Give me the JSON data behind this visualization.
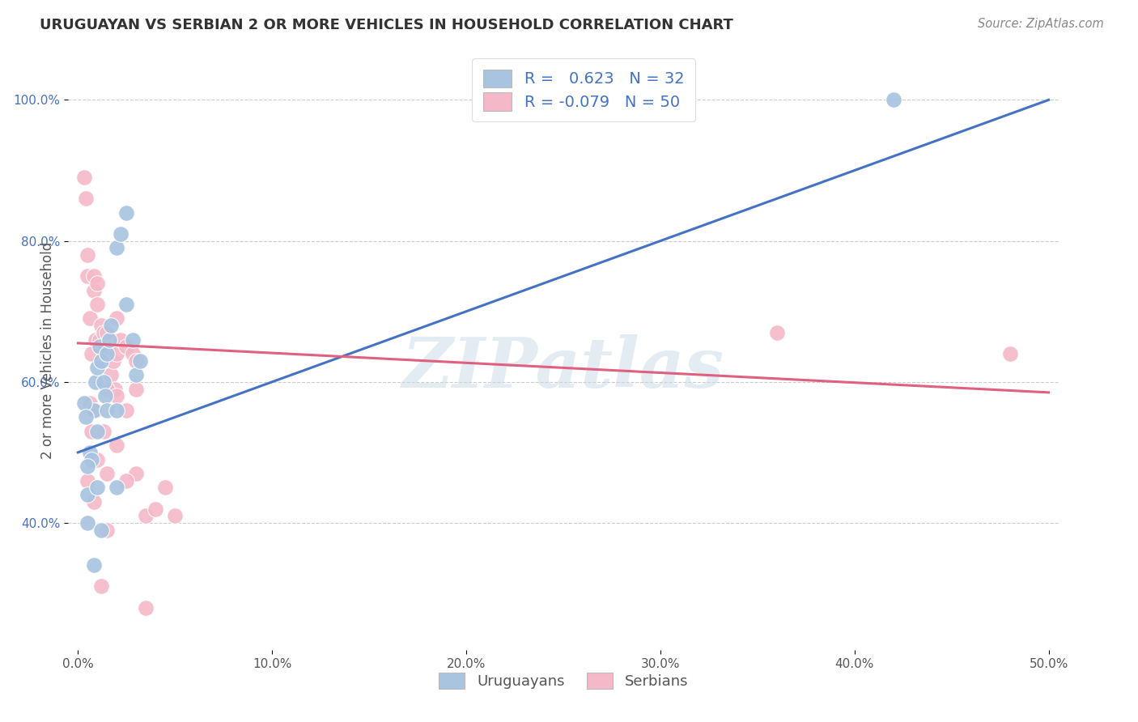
{
  "title": "URUGUAYAN VS SERBIAN 2 OR MORE VEHICLES IN HOUSEHOLD CORRELATION CHART",
  "source": "Source: ZipAtlas.com",
  "ylabel": "2 or more Vehicles in Household",
  "xlim": [
    -0.005,
    0.505
  ],
  "ylim": [
    22.0,
    107.0
  ],
  "yticks": [
    40.0,
    60.0,
    80.0,
    100.0
  ],
  "xticks": [
    0.0,
    0.1,
    0.2,
    0.3,
    0.4,
    0.5
  ],
  "uruguayan_R": 0.623,
  "uruguayan_N": 32,
  "serbian_R": -0.079,
  "serbian_N": 50,
  "uruguayan_color": "#a8c4e0",
  "serbian_color": "#f4b8c8",
  "uruguayan_line_color": "#4472c4",
  "serbian_line_color": "#e06080",
  "uruguayan_points": [
    [
      0.005,
      44.0
    ],
    [
      0.006,
      50.0
    ],
    [
      0.008,
      56.0
    ],
    [
      0.009,
      60.0
    ],
    [
      0.01,
      62.0
    ],
    [
      0.011,
      65.0
    ],
    [
      0.012,
      63.0
    ],
    [
      0.013,
      60.0
    ],
    [
      0.014,
      58.0
    ],
    [
      0.015,
      64.0
    ],
    [
      0.016,
      66.0
    ],
    [
      0.017,
      68.0
    ],
    [
      0.02,
      79.0
    ],
    [
      0.022,
      81.0
    ],
    [
      0.025,
      71.0
    ],
    [
      0.028,
      66.0
    ],
    [
      0.03,
      61.0
    ],
    [
      0.032,
      63.0
    ],
    [
      0.003,
      57.0
    ],
    [
      0.004,
      55.0
    ],
    [
      0.007,
      49.0
    ],
    [
      0.01,
      53.0
    ],
    [
      0.005,
      40.0
    ],
    [
      0.015,
      56.0
    ],
    [
      0.01,
      45.0
    ],
    [
      0.02,
      56.0
    ],
    [
      0.008,
      34.0
    ],
    [
      0.012,
      39.0
    ],
    [
      0.025,
      84.0
    ],
    [
      0.02,
      45.0
    ],
    [
      0.005,
      48.0
    ],
    [
      0.42,
      100.0
    ]
  ],
  "serbian_points": [
    [
      0.003,
      89.0
    ],
    [
      0.005,
      78.0
    ],
    [
      0.006,
      69.0
    ],
    [
      0.007,
      64.0
    ],
    [
      0.008,
      73.0
    ],
    [
      0.009,
      66.0
    ],
    [
      0.01,
      71.0
    ],
    [
      0.011,
      66.0
    ],
    [
      0.012,
      68.0
    ],
    [
      0.013,
      67.0
    ],
    [
      0.014,
      65.0
    ],
    [
      0.015,
      67.0
    ],
    [
      0.016,
      64.0
    ],
    [
      0.017,
      61.0
    ],
    [
      0.018,
      63.0
    ],
    [
      0.019,
      59.0
    ],
    [
      0.02,
      64.0
    ],
    [
      0.022,
      66.0
    ],
    [
      0.025,
      65.0
    ],
    [
      0.028,
      64.0
    ],
    [
      0.03,
      59.0
    ],
    [
      0.004,
      86.0
    ],
    [
      0.005,
      75.0
    ],
    [
      0.008,
      75.0
    ],
    [
      0.01,
      74.0
    ],
    [
      0.02,
      69.0
    ],
    [
      0.025,
      56.0
    ],
    [
      0.03,
      63.0
    ],
    [
      0.006,
      57.0
    ],
    [
      0.009,
      56.0
    ],
    [
      0.015,
      59.0
    ],
    [
      0.02,
      58.0
    ],
    [
      0.007,
      53.0
    ],
    [
      0.013,
      53.0
    ],
    [
      0.02,
      51.0
    ],
    [
      0.01,
      49.0
    ],
    [
      0.005,
      46.0
    ],
    [
      0.008,
      43.0
    ],
    [
      0.03,
      47.0
    ],
    [
      0.015,
      47.0
    ],
    [
      0.025,
      46.0
    ],
    [
      0.035,
      41.0
    ],
    [
      0.04,
      42.0
    ],
    [
      0.045,
      45.0
    ],
    [
      0.05,
      41.0
    ],
    [
      0.015,
      39.0
    ],
    [
      0.035,
      28.0
    ],
    [
      0.012,
      31.0
    ],
    [
      0.36,
      67.0
    ],
    [
      0.48,
      64.0
    ]
  ],
  "watermark": "ZIPatlas",
  "background_color": "#ffffff",
  "grid_color": "#cccccc",
  "uruguayan_line_x": [
    0.0,
    0.5
  ],
  "uruguayan_line_y": [
    50.0,
    100.0
  ],
  "serbian_line_x": [
    0.0,
    0.5
  ],
  "serbian_line_y": [
    65.5,
    58.5
  ]
}
